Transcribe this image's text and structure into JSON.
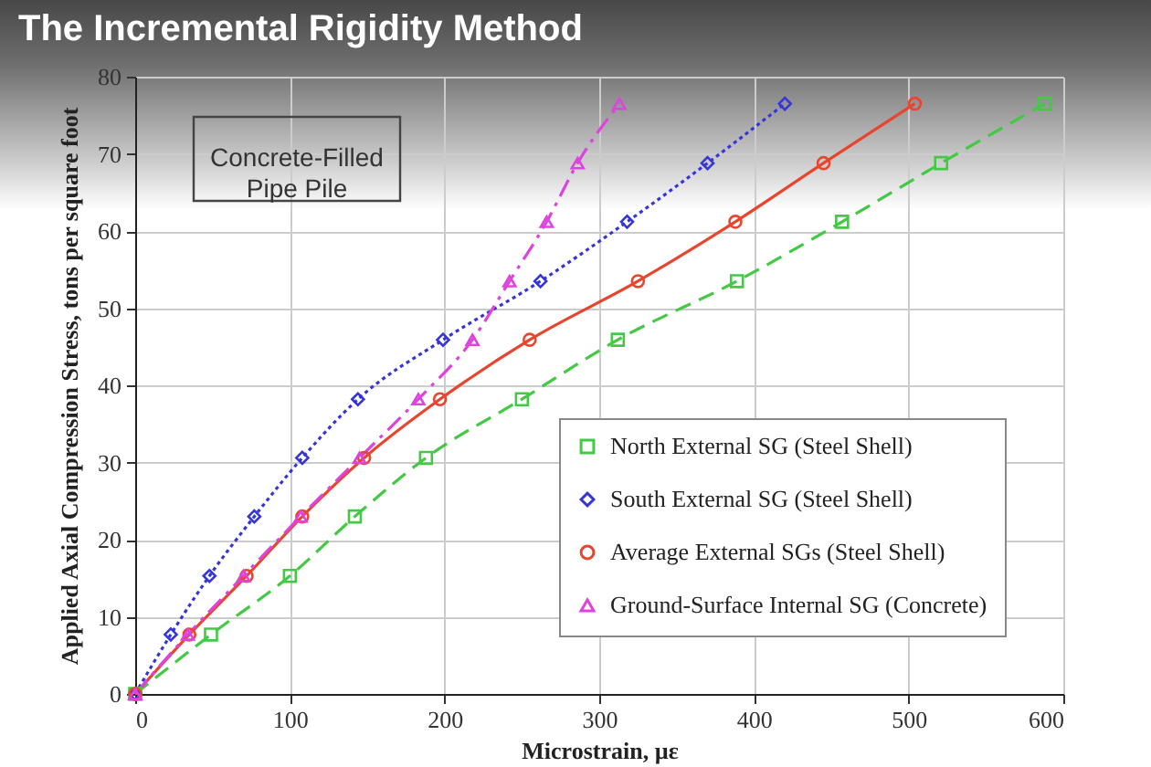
{
  "chart_data": {
    "type": "line",
    "title": "The Incremental Rigidity Method",
    "xlabel": "Microstrain, µε",
    "ylabel": "Applied Axial Compression Stress, tons per square foot",
    "annotations": [
      "Concrete-Filled\nPipe Pile"
    ],
    "xlim": [
      0,
      600
    ],
    "xticks": [
      0,
      100,
      200,
      300,
      400,
      500,
      600
    ],
    "ylim": [
      0,
      80
    ],
    "yticks": [
      0,
      10,
      20,
      30,
      40,
      50,
      60,
      70,
      80
    ],
    "grid": true,
    "legend": "bottom right",
    "series": [
      {
        "name": "North External SG (Steel Shell)",
        "color": "#44c944",
        "marker": "square",
        "line_style": "dashed",
        "x": [
          0,
          49,
          100,
          142,
          188,
          250,
          312,
          389,
          457,
          521,
          588
        ],
        "values": [
          0,
          7.7,
          15.3,
          23,
          30.6,
          38.2,
          45.9,
          53.5,
          61.2,
          68.8,
          76.5
        ]
      },
      {
        "name": "South External SG (Steel Shell)",
        "color": "#3535d8",
        "marker": "diamond",
        "line_style": "dotted",
        "x": [
          0,
          23,
          48,
          77,
          108,
          144,
          199,
          262,
          318,
          370,
          420
        ],
        "values": [
          0,
          7.7,
          15.3,
          23,
          30.6,
          38.2,
          45.9,
          53.5,
          61.2,
          68.8,
          76.5
        ]
      },
      {
        "name": "Average External SGs (Steel Shell)",
        "color": "#e8452e",
        "marker": "circle",
        "line_style": "solid",
        "x": [
          0,
          35,
          72,
          108,
          148,
          197,
          255,
          325,
          388,
          445,
          504
        ],
        "values": [
          0,
          7.7,
          15.3,
          23,
          30.6,
          38.2,
          45.9,
          53.5,
          61.2,
          68.8,
          76.5
        ]
      },
      {
        "name": "Ground-Surface Internal SG (Concrete)",
        "color": "#dd44dd",
        "marker": "triangle",
        "line_style": "dashdot",
        "x": [
          0,
          34,
          70,
          107,
          145,
          183,
          218,
          242,
          266,
          286,
          313
        ],
        "values": [
          0,
          7.7,
          15.3,
          23,
          30.6,
          38.2,
          45.9,
          53.5,
          61.2,
          68.8,
          76.5
        ]
      }
    ]
  }
}
